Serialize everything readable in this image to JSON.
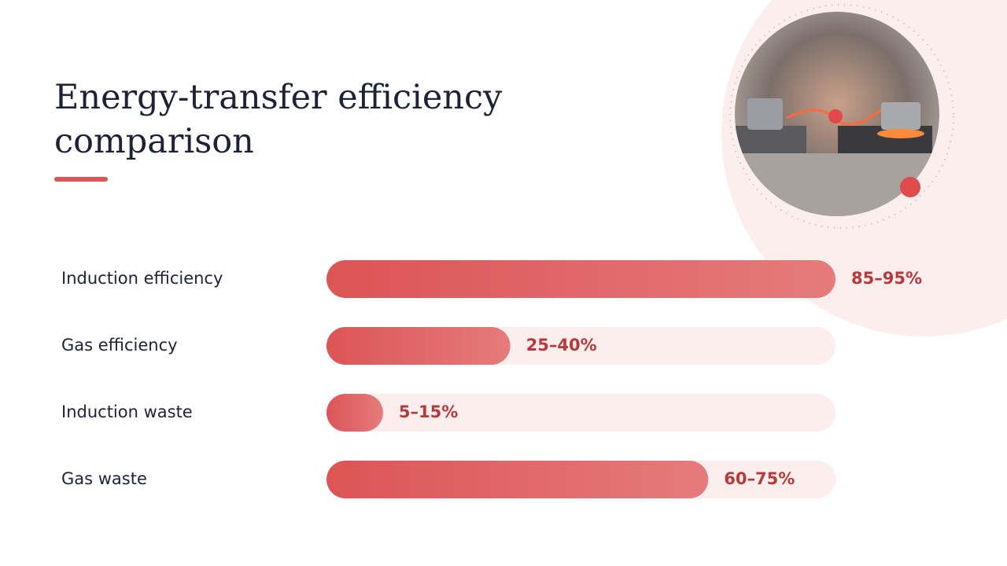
{
  "chart_data": {
    "type": "bar",
    "orientation": "horizontal",
    "title": "Energy-transfer efficiency comparison",
    "categories": [
      "Induction efficiency",
      "Gas efficiency",
      "Induction waste",
      "Gas waste"
    ],
    "values": [
      90,
      32.5,
      10,
      67.5
    ],
    "value_labels": [
      "85–95%",
      "25–40%",
      "5–15%",
      "60–75%"
    ],
    "color": "#dc5456",
    "xlim": [
      0,
      90
    ]
  }
}
